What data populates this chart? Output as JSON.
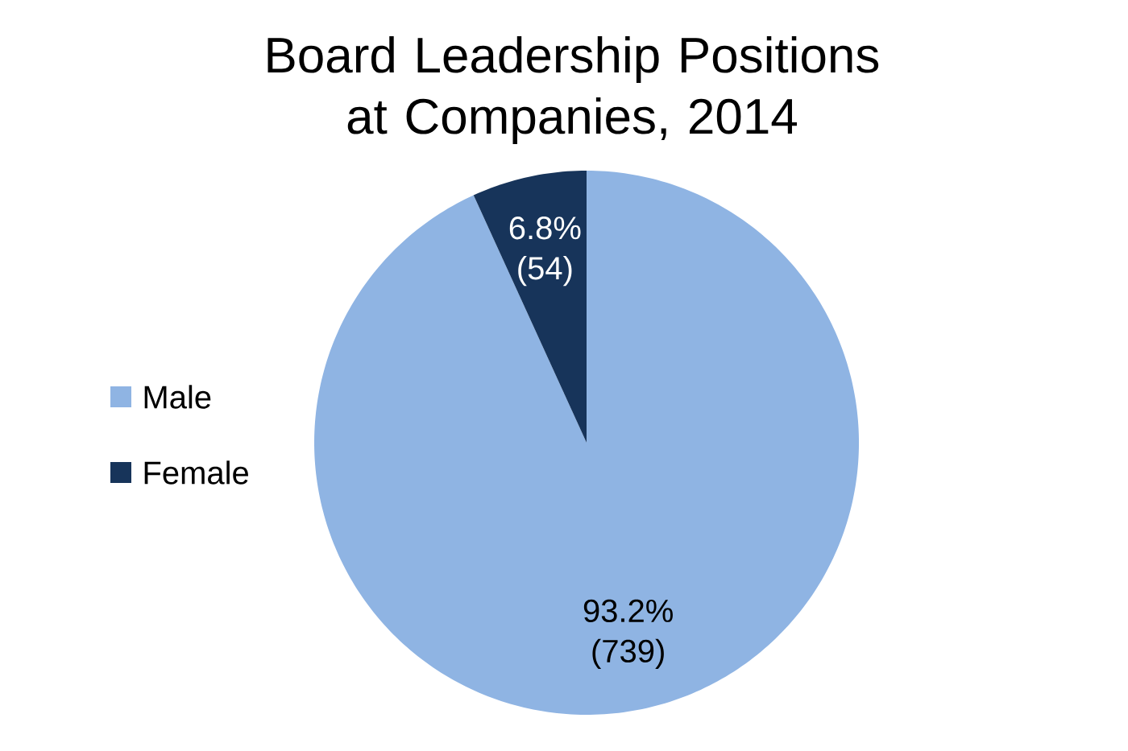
{
  "chart_data": {
    "type": "pie",
    "title": "Board Leadership Positions at Companies, 2014",
    "categories": [
      "Male",
      "Female"
    ],
    "values": [
      739,
      54
    ],
    "colors": [
      "#8fb4e3",
      "#17345a"
    ],
    "value_labels": [
      "93.2% (739)",
      "6.8% (54)"
    ],
    "legend": "left"
  }
}
